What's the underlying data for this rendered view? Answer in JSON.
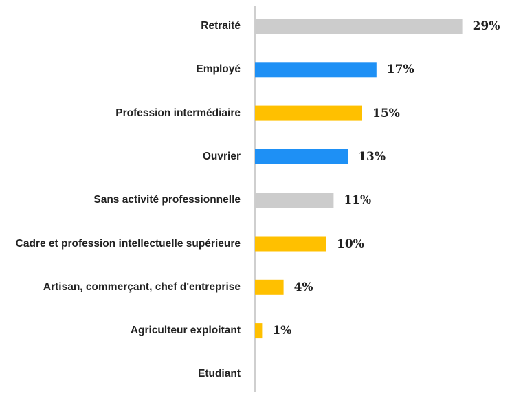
{
  "chart_data": {
    "type": "barh",
    "categories": [
      "Retraité",
      "Employé",
      "Profession intermédiaire",
      "Ouvrier",
      "Sans activité professionnelle",
      "Cadre et profession intellectuelle supérieure",
      "Artisan, commerçant, chef d'entreprise",
      "Agriculteur exploitant",
      "Etudiant"
    ],
    "values": [
      29,
      17,
      15,
      13,
      11,
      10,
      4,
      1,
      0
    ],
    "value_labels": [
      "29%",
      "17%",
      "15%",
      "13%",
      "11%",
      "10%",
      "4%",
      "1%",
      null
    ],
    "colors": [
      "#cccccc",
      "#1e90f5",
      "#ffc000",
      "#1e90f5",
      "#cccccc",
      "#ffc000",
      "#ffc000",
      "#ffc000",
      null
    ],
    "xlim": [
      0,
      35
    ]
  }
}
